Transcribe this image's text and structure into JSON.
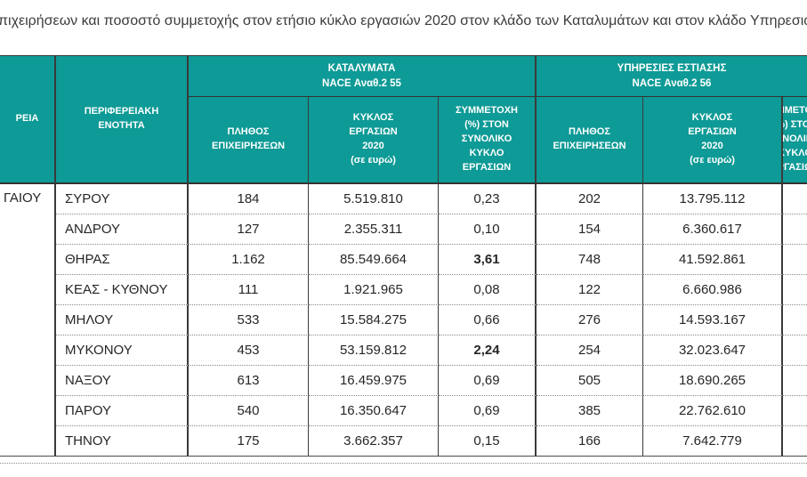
{
  "title_fragment": "πιχειρήσεων και ποσοστό συμμετοχής στον ετήσιο κύκλο εργασιών 2020 στον κλάδο των Καταλυμάτων  και στον κλάδο Υπηρεσιών Εσ",
  "colors": {
    "header_teal": "#0E9A96",
    "header_text": "#FFFFFF",
    "body_text": "#262626",
    "border_dark": "#3A3A3A",
    "row_divider_dotted": "#8A8A8A"
  },
  "table": {
    "region_column_header_fragment": "ΡΕΙΑ",
    "region_value_fragment": "ΓΑΙΟΥ",
    "unit_column_header": "ΠΕΡΙΦΕΡΕΙΑΚΗ\nΕΝΟΤΗΤΑ",
    "group_55": {
      "title": "ΚΑΤΑΛΥΜΑΤΑ\nNACE Αναθ.2 55",
      "col_count": "ΠΛΗΘΟΣ\nΕΠΙΧΕΙΡΗΣΕΩΝ",
      "col_turnover": "ΚΥΚΛΟΣ\nΕΡΓΑΣΙΩΝ\n2020\n(σε ευρώ)",
      "col_share": "ΣΥΜΜΕΤΟΧΗ\n(%) ΣΤΟΝ\nΣΥΝΟΛΙΚΟ\nΚΥΚΛΟ\nΕΡΓΑΣΙΩΝ"
    },
    "group_56": {
      "title": "ΥΠΗΡΕΣΙΕΣ ΕΣΤΙΑΣΗΣ\nNACE Αναθ.2 56",
      "col_count": "ΠΛΗΘΟΣ\nΕΠΙΧΕΙΡΗΣΕΩΝ",
      "col_turnover": "ΚΥΚΛΟΣ\nΕΡΓΑΣΙΩΝ\n2020\n(σε ευρώ)",
      "col_share_fragment": "ΣΥΜΜΕΤΟΧΗ\n(%) ΣΤΟΝ\nΣΥΝΟΛΙΚΟ\nΚΥΚΛΟ\nΕΡΓΑΣΙΩΝ"
    },
    "rows": [
      {
        "name": "ΣΥΡΟΥ",
        "count55": "184",
        "turnover55": "5.519.810",
        "share55": "0,23",
        "share55_bold": false,
        "count56": "202",
        "turnover56": "13.795.112"
      },
      {
        "name": "ΑΝΔΡΟΥ",
        "count55": "127",
        "turnover55": "2.355.311",
        "share55": "0,10",
        "share55_bold": false,
        "count56": "154",
        "turnover56": "6.360.617"
      },
      {
        "name": "ΘΗΡΑΣ",
        "count55": "1.162",
        "turnover55": "85.549.664",
        "share55": "3,61",
        "share55_bold": true,
        "count56": "748",
        "turnover56": "41.592.861"
      },
      {
        "name": "ΚΕΑΣ - ΚΥΘΝΟΥ",
        "count55": "111",
        "turnover55": "1.921.965",
        "share55": "0,08",
        "share55_bold": false,
        "count56": "122",
        "turnover56": "6.660.986"
      },
      {
        "name": "ΜΗΛΟΥ",
        "count55": "533",
        "turnover55": "15.584.275",
        "share55": "0,66",
        "share55_bold": false,
        "count56": "276",
        "turnover56": "14.593.167"
      },
      {
        "name": "ΜΥΚΟΝΟΥ",
        "count55": "453",
        "turnover55": "53.159.812",
        "share55": "2,24",
        "share55_bold": true,
        "count56": "254",
        "turnover56": "32.023.647"
      },
      {
        "name": "ΝΑΞΟΥ",
        "count55": "613",
        "turnover55": "16.459.975",
        "share55": "0,69",
        "share55_bold": false,
        "count56": "505",
        "turnover56": "18.690.265"
      },
      {
        "name": "ΠΑΡΟΥ",
        "count55": "540",
        "turnover55": "16.350.647",
        "share55": "0,69",
        "share55_bold": false,
        "count56": "385",
        "turnover56": "22.762.610"
      },
      {
        "name": "ΤΗΝΟΥ",
        "count55": "175",
        "turnover55": "3.662.357",
        "share55": "0,15",
        "share55_bold": false,
        "count56": "166",
        "turnover56": "7.642.779"
      }
    ]
  }
}
